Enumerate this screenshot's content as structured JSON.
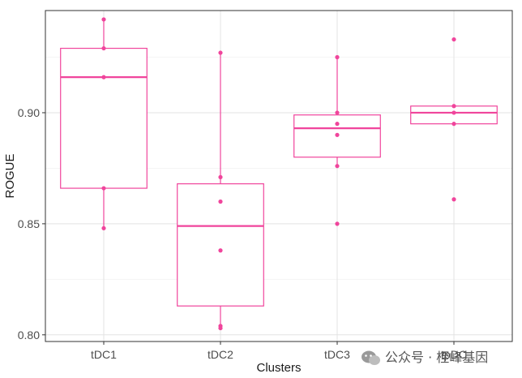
{
  "chart_data": {
    "type": "boxplot",
    "title": "",
    "xlabel": "Clusters",
    "ylabel": "ROGUE",
    "ylim": [
      0.797,
      0.946
    ],
    "yticks": [
      0.8,
      0.85,
      0.9
    ],
    "ytick_labels": [
      "0.80",
      "0.85",
      "0.90"
    ],
    "categories": [
      "tDC1",
      "tDC2",
      "tDC3",
      "tpDC"
    ],
    "grid": true,
    "color": "#f0459c",
    "boxes": [
      {
        "category": "tDC1",
        "q1": 0.866,
        "median": 0.916,
        "q3": 0.929,
        "whisker_low": 0.848,
        "whisker_high": 0.942,
        "points": [
          0.942,
          0.929,
          0.916,
          0.866,
          0.848
        ]
      },
      {
        "category": "tDC2",
        "q1": 0.813,
        "median": 0.849,
        "q3": 0.868,
        "whisker_low": 0.803,
        "whisker_high": 0.927,
        "points": [
          0.927,
          0.871,
          0.86,
          0.838,
          0.804,
          0.803
        ]
      },
      {
        "category": "tDC3",
        "q1": 0.88,
        "median": 0.893,
        "q3": 0.899,
        "whisker_low": 0.876,
        "whisker_high": 0.925,
        "points": [
          0.925,
          0.9,
          0.895,
          0.89,
          0.876,
          0.85
        ]
      },
      {
        "category": "tpDC",
        "q1": 0.895,
        "median": 0.9,
        "q3": 0.903,
        "whisker_low": 0.895,
        "whisker_high": 0.903,
        "points": [
          0.933,
          0.903,
          0.9,
          0.895,
          0.861
        ]
      }
    ]
  },
  "watermark": {
    "icon": "wechat-icon",
    "text": "公众号 · 桎峰基因"
  }
}
